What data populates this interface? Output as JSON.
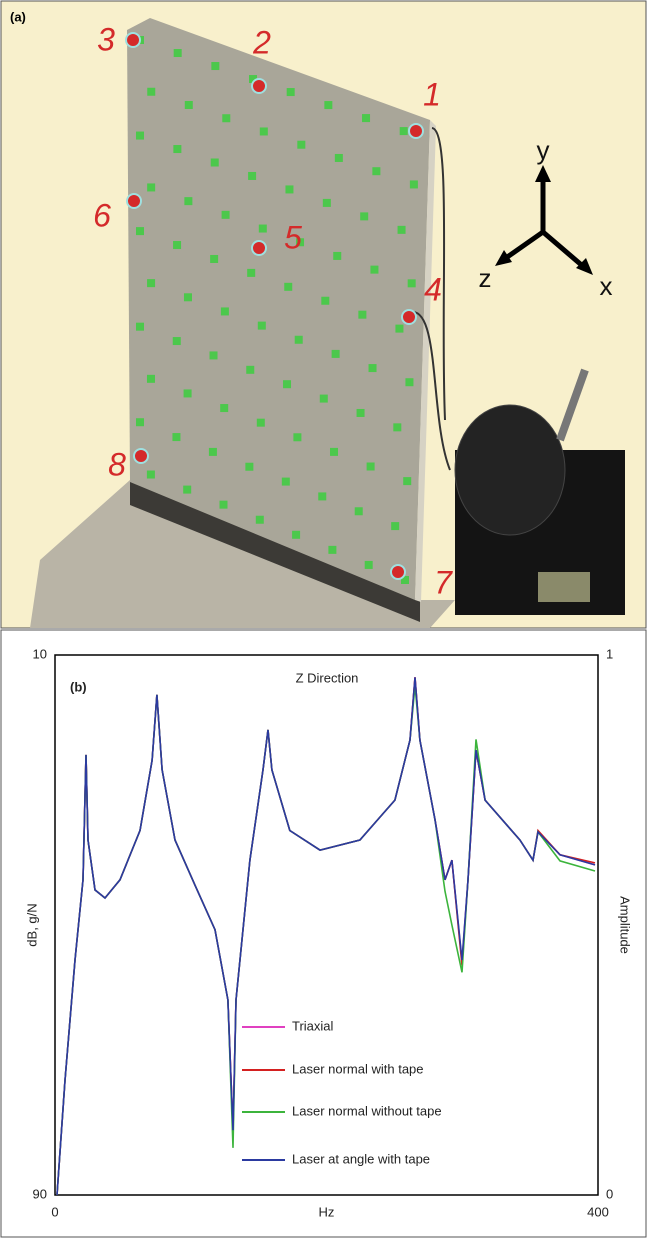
{
  "photo": {
    "label": "(a)",
    "points": [
      "1",
      "2",
      "3",
      "4",
      "5",
      "6",
      "7",
      "8"
    ],
    "axes": [
      "y",
      "z",
      "x"
    ]
  },
  "chart_data": {
    "type": "line",
    "panel_label": "(b)",
    "title": "Z Direction",
    "x_label": "Hz",
    "y_label": "dB, g/N",
    "y2_label": "Amplitude",
    "xlim": [
      0,
      400
    ],
    "xticks": [
      0,
      400
    ],
    "ylim": [
      90,
      10
    ],
    "yticks": [
      10,
      90
    ],
    "y2lim": [
      0,
      1
    ],
    "y2ticks": [
      1,
      0
    ],
    "x": [
      1.5,
      7.4,
      14.7,
      20.6,
      22.8,
      24.3,
      29.5,
      36.8,
      47.9,
      62.6,
      71.5,
      75.1,
      78.9,
      88.4,
      103.1,
      117.9,
      127.4,
      131.1,
      133.3,
      143.6,
      153.2,
      156.9,
      159.8,
      173,
      195.2,
      224.6,
      250.4,
      261.5,
      265.2,
      268.8,
      279.9,
      287.3,
      292.4,
      299.8,
      304.2,
      310.1,
      316.8,
      342.5,
      352.1,
      355.8,
      372,
      397.8
    ],
    "series": [
      {
        "name": "Triaxial",
        "color": "#e040c0",
        "values": [
          90,
          73,
          55.2,
          43.3,
          24.8,
          37.4,
          44.8,
          46,
          43.3,
          36,
          25.6,
          15.9,
          27,
          37.4,
          44.1,
          50.7,
          61.1,
          80.4,
          61.1,
          40.4,
          27,
          21.1,
          27,
          36,
          38.9,
          37.4,
          31.5,
          22.6,
          13.3,
          22.6,
          34.4,
          43.3,
          40.4,
          55.5,
          43.3,
          24.1,
          31.5,
          37.4,
          40.4,
          36.2,
          39.6,
          41.1
        ]
      },
      {
        "name": "Laser normal with tape",
        "color": "#d42020",
        "values": [
          90,
          73,
          55.2,
          43.3,
          24.8,
          37.4,
          44.8,
          46,
          43.3,
          36,
          25.6,
          15.9,
          27,
          37.4,
          44.1,
          50.7,
          61.1,
          80.4,
          61.1,
          40.4,
          27,
          21.1,
          27,
          36,
          38.9,
          37.4,
          31.5,
          22.6,
          13.3,
          22.6,
          34.4,
          43.3,
          40.4,
          56,
          43.3,
          24.1,
          31.5,
          37.4,
          40.4,
          36,
          39.6,
          40.8
        ]
      },
      {
        "name": "Laser normal without tape",
        "color": "#3cb43c",
        "values": [
          90,
          73,
          55.2,
          43.3,
          24.8,
          37.4,
          44.8,
          46,
          43.3,
          36,
          25.6,
          15.9,
          27,
          37.4,
          44.1,
          50.7,
          61.1,
          83,
          61.1,
          40.4,
          27,
          21.1,
          27,
          36,
          38.9,
          37.4,
          31.5,
          22.6,
          14.5,
          22.6,
          34.4,
          45,
          50,
          57,
          43.3,
          22.5,
          31.5,
          37.4,
          40.4,
          36.2,
          40.5,
          42
        ]
      },
      {
        "name": "Laser at angle with tape",
        "color": "#2b3aa0",
        "values": [
          90,
          73,
          55.2,
          43.3,
          24.8,
          37.4,
          44.8,
          46,
          43.3,
          36,
          25.6,
          15.9,
          27,
          37.4,
          44.1,
          50.7,
          61.1,
          80.4,
          61.1,
          40.4,
          27,
          21.1,
          27,
          36,
          38.9,
          37.4,
          31.5,
          22.6,
          13.3,
          22.6,
          34.4,
          43.3,
          40.4,
          55.2,
          43.3,
          24.1,
          31.5,
          37.4,
          40.4,
          36.2,
          39.6,
          41.1
        ]
      }
    ]
  }
}
